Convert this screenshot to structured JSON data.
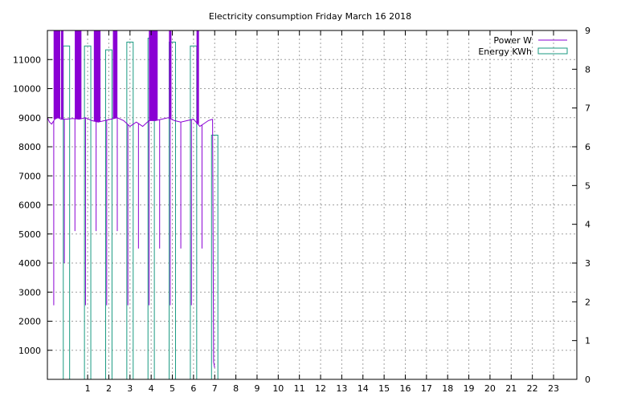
{
  "chart_data": {
    "type": "bar",
    "title": "Electricity consumption Friday March 16 2018",
    "x": {
      "range": [
        -0.9,
        24.1
      ],
      "ticks": [
        1,
        2,
        3,
        4,
        5,
        6,
        7,
        8,
        9,
        10,
        11,
        12,
        13,
        14,
        15,
        16,
        17,
        18,
        19,
        20,
        21,
        22,
        23
      ],
      "tick_labels": [
        "1",
        "2",
        "3",
        "4",
        "5",
        "6",
        "7",
        "8",
        "9",
        "10",
        "11",
        "12",
        "13",
        "14",
        "15",
        "16",
        "17",
        "18",
        "19",
        "20",
        "21",
        "22",
        "23"
      ]
    },
    "y_left": {
      "range": [
        0,
        12000
      ],
      "ticks": [
        1000,
        2000,
        3000,
        4000,
        5000,
        6000,
        7000,
        8000,
        9000,
        10000,
        11000
      ],
      "tick_labels": [
        "1000",
        "2000",
        "3000",
        "4000",
        "5000",
        "6000",
        "7000",
        "8000",
        "9000",
        "10000",
        "11000"
      ]
    },
    "y_right": {
      "range": [
        0,
        9
      ],
      "ticks": [
        0,
        1,
        2,
        3,
        4,
        5,
        6,
        7,
        8,
        9
      ],
      "tick_labels": [
        "0",
        "1",
        "2",
        "3",
        "4",
        "5",
        "6",
        "7",
        "8",
        "9"
      ]
    },
    "grid": true,
    "legend_position": "top-right",
    "series": [
      {
        "name": "Energy KWh",
        "type": "bar",
        "axis": "right",
        "color": "#1a9a82",
        "bar_width": 0.3,
        "x": [
          0,
          0.5,
          1,
          1.5,
          2,
          2.5,
          3,
          3.5,
          4,
          4.5,
          5,
          5.5,
          6,
          6.5,
          7,
          7.5
        ],
        "values": [
          8.6,
          0,
          8.6,
          0,
          8.5,
          0,
          8.7,
          0,
          8.8,
          0,
          8.7,
          0,
          8.6,
          0,
          6.3,
          0
        ]
      },
      {
        "name": "Power W",
        "type": "line",
        "axis": "left",
        "color": "#8a00d4",
        "baseline": [
          [
            -0.9,
            9000
          ],
          [
            -0.8,
            8850
          ],
          [
            -0.7,
            8780
          ],
          [
            -0.55,
            8950
          ],
          [
            -0.4,
            9000
          ],
          [
            -0.25,
            8950
          ],
          [
            0,
            8950
          ],
          [
            0.3,
            8970
          ],
          [
            0.6,
            8950
          ],
          [
            0.9,
            9000
          ],
          [
            1.2,
            8900
          ],
          [
            1.5,
            8850
          ],
          [
            1.8,
            8900
          ],
          [
            2.1,
            8950
          ],
          [
            2.4,
            9000
          ],
          [
            2.7,
            8900
          ],
          [
            3.0,
            8700
          ],
          [
            3.3,
            8850
          ],
          [
            3.6,
            8700
          ],
          [
            3.9,
            8900
          ],
          [
            4.2,
            8900
          ],
          [
            4.5,
            8950
          ],
          [
            4.8,
            9000
          ],
          [
            5.1,
            8900
          ],
          [
            5.4,
            8850
          ],
          [
            5.7,
            8900
          ],
          [
            6.0,
            8950
          ],
          [
            6.3,
            8700
          ],
          [
            6.5,
            8800
          ],
          [
            6.7,
            8900
          ],
          [
            6.9,
            8950
          ]
        ],
        "dips": [
          [
            -0.6,
            2550
          ],
          [
            -0.1,
            4000
          ],
          [
            0.4,
            5100
          ],
          [
            0.9,
            2550
          ],
          [
            1.4,
            5100
          ],
          [
            1.9,
            2550
          ],
          [
            2.4,
            5100
          ],
          [
            2.9,
            2550
          ],
          [
            3.4,
            4500
          ],
          [
            3.9,
            2550
          ],
          [
            4.4,
            4500
          ],
          [
            4.9,
            2550
          ],
          [
            5.4,
            4500
          ],
          [
            5.9,
            2550
          ],
          [
            6.4,
            4500
          ]
        ],
        "spikes": [
          [
            -0.55,
            12000
          ],
          [
            -0.45,
            12000
          ],
          [
            -0.35,
            12000
          ],
          [
            -0.2,
            12000
          ],
          [
            0.45,
            12000
          ],
          [
            0.55,
            12000
          ],
          [
            0.65,
            12000
          ],
          [
            1.35,
            12000
          ],
          [
            1.45,
            12000
          ],
          [
            1.55,
            12000
          ],
          [
            2.25,
            12000
          ],
          [
            2.35,
            12000
          ],
          [
            3.95,
            12000
          ],
          [
            4.05,
            12000
          ],
          [
            4.15,
            12000
          ],
          [
            4.25,
            12000
          ],
          [
            4.9,
            12000
          ],
          [
            6.2,
            12000
          ]
        ],
        "tail": [
          [
            6.9,
            8950
          ],
          [
            6.95,
            600
          ],
          [
            7.0,
            400
          ]
        ]
      }
    ]
  }
}
